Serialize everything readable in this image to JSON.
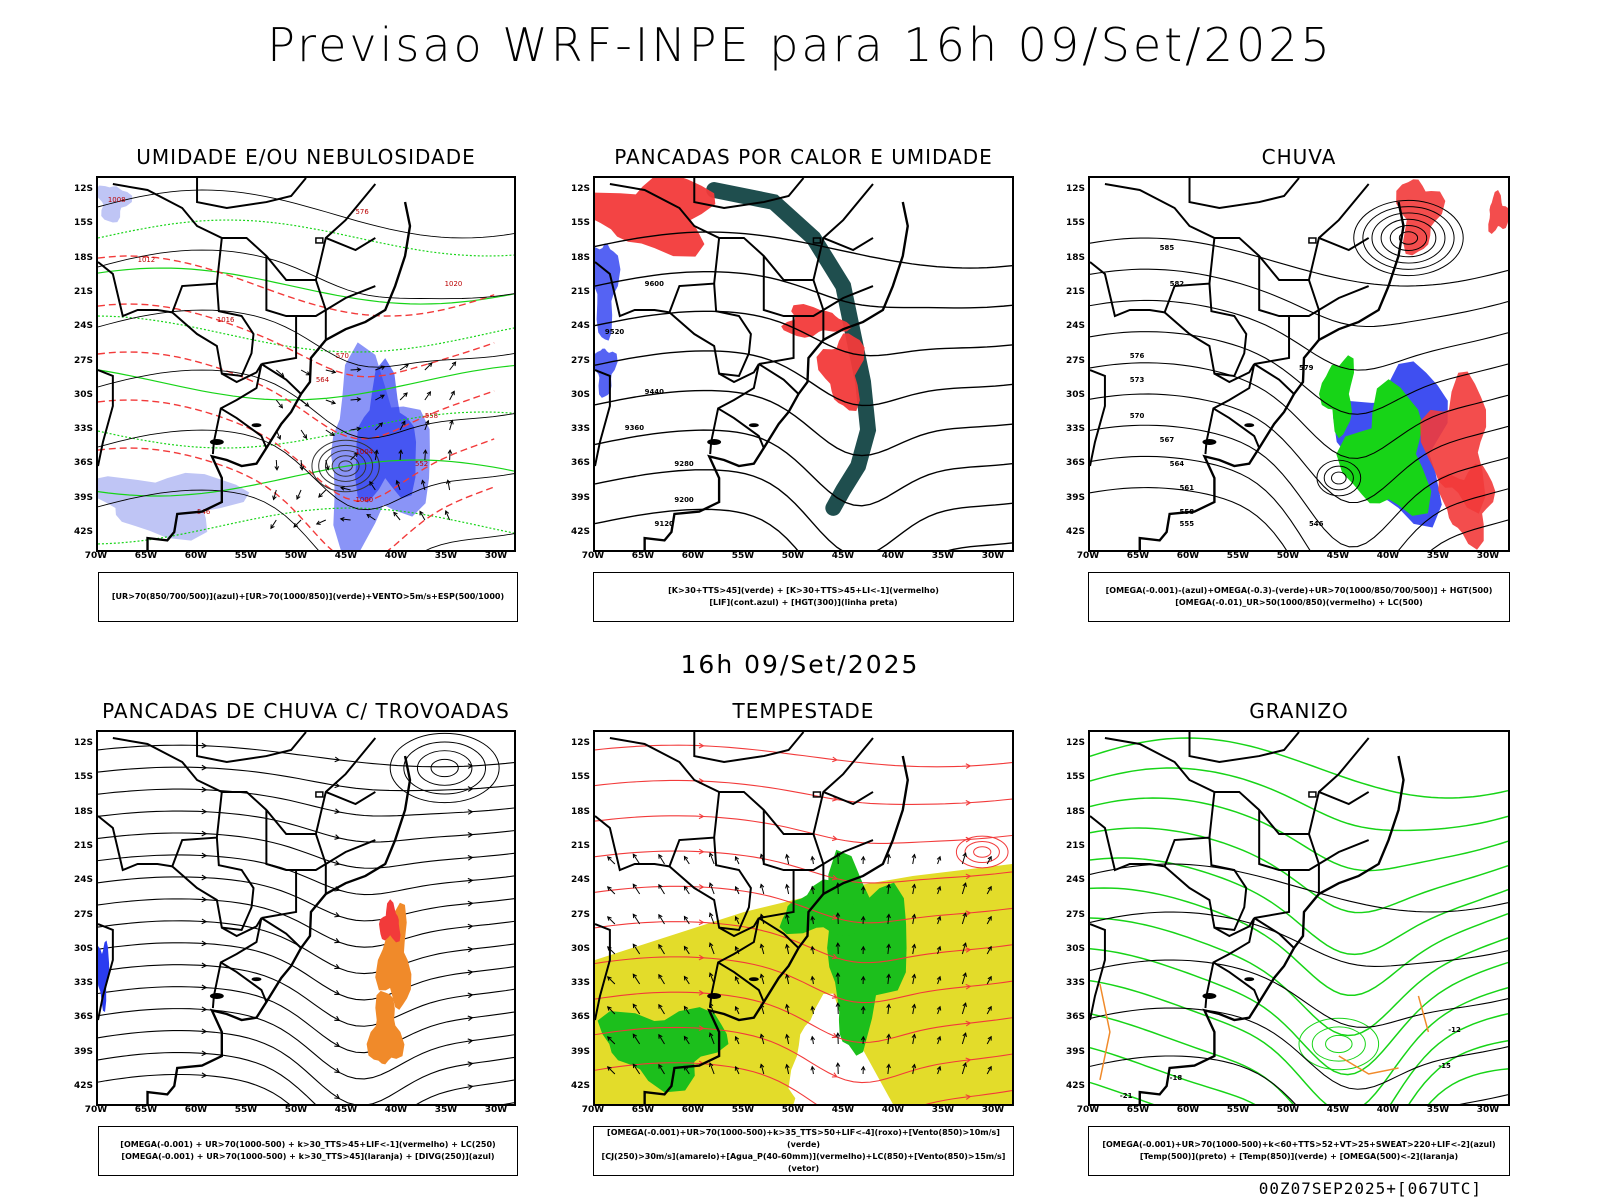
{
  "title": "Previsao WRF-INPE  para 16h 09/Set/2025",
  "subtitle": "16h 09/Set/2025",
  "footer": "00Z07SEP2025+[067UTC]",
  "lat_labels": [
    "12S",
    "15S",
    "18S",
    "21S",
    "24S",
    "27S",
    "30S",
    "33S",
    "36S",
    "39S",
    "42S"
  ],
  "lon_labels": [
    "70W",
    "65W",
    "60W",
    "55W",
    "50W",
    "45W",
    "40W",
    "35W",
    "30W"
  ],
  "colors": {
    "blue": "#2a3cf0",
    "green": "#17d417",
    "red": "#f23a3a",
    "teal": "#1f4e4e",
    "yellow": "#e3dc2a",
    "orange": "#f08a2a",
    "lightblue": "#b8bff4"
  },
  "panels": [
    {
      "id": "umidade",
      "title": "UMIDADE E/OU NEBULOSIDADE",
      "legend": [
        "[UR>70(850/700/500)](azul)+[UR>70(1000/850)](verde)+VENTO>5m/s+ESP(500/1000)"
      ]
    },
    {
      "id": "pancadas-calor",
      "title": "PANCADAS POR CALOR E UMIDADE",
      "legend": [
        "[K>30+TTS>45](verde) + [K>30+TTS>45+LI<-1](vermelho)",
        "[LIF](cont.azul) + [HGT(300)](linha preta)"
      ]
    },
    {
      "id": "chuva",
      "title": "CHUVA",
      "legend": [
        "[OMEGA(-0.001)-(azul)+OMEGA(-0.3)-(verde)+UR>70(1000/850/700/500)] + HGT(500)",
        "[OMEGA(-0.01)_UR>50(1000/850)(vermelho) + LC(500)"
      ]
    },
    {
      "id": "trovoadas",
      "title": "PANCADAS DE CHUVA C/ TROVOADAS",
      "legend": [
        "[OMEGA(-0.001) + UR>70(1000-500) + k>30_TTS>45+LIF<-1](vermelho) + LC(250)",
        "[OMEGA(-0.001) + UR>70(1000-500) + k>30_TTS>45](laranja) + [DIVG(250)](azul)"
      ]
    },
    {
      "id": "tempestade",
      "title": "TEMPESTADE",
      "legend": [
        "[OMEGA(-0.001)+UR>70(1000-500)+k>35_TTS>50+LIF<-4](roxo)+[Vento(850)>10m/s](verde)",
        "[CJ(250)>30m/s](amarelo)+[Agua_P(40-60mm)](vermelho)+LC(850)+[Vento(850)>15m/s](vetor)"
      ]
    },
    {
      "id": "granizo",
      "title": "GRANIZO",
      "legend": [
        "[OMEGA(-0.001)+UR>70(1000-500)+k<60+TTS>52+VT>25+SWEAT>220+LIF<-2](azul)",
        "[Temp(500)](preto) + [Temp(850)](verde) + [OMEGA(500)<-2](laranja)"
      ]
    }
  ],
  "contour_labels": {
    "umidade": [
      "1008",
      "1012",
      "1016",
      "1020",
      "1004",
      "1000",
      "576",
      "570",
      "564",
      "558",
      "552",
      "546"
    ],
    "pancadas-calor": [
      "9600",
      "9520",
      "9440",
      "9360",
      "9280",
      "9200",
      "9120"
    ],
    "chuva": [
      "585",
      "582",
      "579",
      "576",
      "573",
      "570",
      "567",
      "564",
      "561",
      "558",
      "555",
      "546"
    ],
    "granizo": [
      "-12",
      "-15",
      "-18",
      "-21"
    ]
  }
}
